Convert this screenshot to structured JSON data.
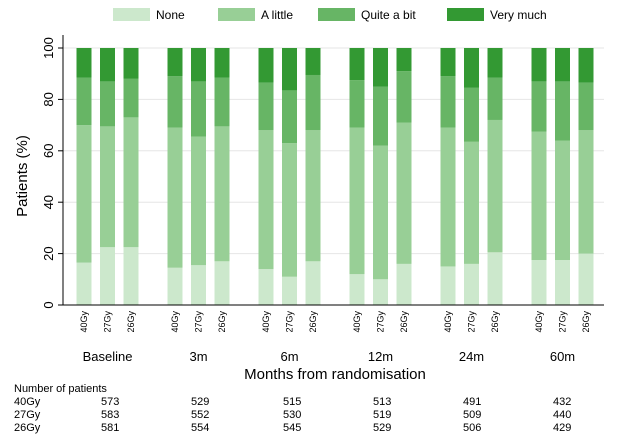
{
  "chart_data": {
    "type": "bar",
    "stacked": true,
    "groups": [
      "Baseline",
      "3m",
      "6m",
      "12m",
      "24m",
      "60m"
    ],
    "arms": [
      "40Gy",
      "27Gy",
      "26Gy"
    ],
    "xlabel": "Months from randomisation",
    "ylabel": "Patients (%)",
    "ylim": [
      0,
      100
    ],
    "yticks": [
      0,
      20,
      40,
      60,
      80,
      100
    ],
    "grid": true,
    "legend_position": "top",
    "series": [
      {
        "name": "None",
        "color": "#cce8cc",
        "values": [
          [
            16.5,
            22.5,
            22.5
          ],
          [
            14.5,
            15.5,
            17
          ],
          [
            14,
            11,
            17
          ],
          [
            12,
            10,
            16
          ],
          [
            15,
            16,
            20.5
          ],
          [
            17.5,
            17.5,
            20
          ]
        ]
      },
      {
        "name": "A little",
        "color": "#98cf96",
        "values": [
          [
            53.5,
            47,
            50.5
          ],
          [
            54.5,
            50,
            52.5
          ],
          [
            54,
            52,
            51
          ],
          [
            57,
            52,
            55
          ],
          [
            54,
            47.5,
            51.5
          ],
          [
            50,
            46.5,
            48
          ]
        ]
      },
      {
        "name": "Quite a bit",
        "color": "#67b565",
        "values": [
          [
            18.5,
            17.5,
            15
          ],
          [
            20,
            21.5,
            19
          ],
          [
            18.5,
            20.5,
            21.5
          ],
          [
            18.5,
            23,
            20
          ],
          [
            20,
            21,
            16.5
          ],
          [
            19.5,
            23,
            18.5
          ]
        ]
      },
      {
        "name": "Very much",
        "color": "#339933",
        "values": [
          [
            11.5,
            13,
            12
          ],
          [
            11,
            13,
            11.5
          ],
          [
            13.5,
            16.5,
            10.5
          ],
          [
            12.5,
            15,
            9
          ],
          [
            11,
            15.5,
            11.5
          ],
          [
            13,
            13,
            13.5
          ]
        ]
      }
    ]
  },
  "patients_table": {
    "title": "Number of patients",
    "rows": [
      {
        "arm": "40Gy",
        "counts": [
          "573",
          "529",
          "515",
          "513",
          "491",
          "432"
        ]
      },
      {
        "arm": "27Gy",
        "counts": [
          "583",
          "552",
          "530",
          "519",
          "509",
          "440"
        ]
      },
      {
        "arm": "26Gy",
        "counts": [
          "581",
          "554",
          "545",
          "529",
          "506",
          "429"
        ]
      }
    ]
  }
}
